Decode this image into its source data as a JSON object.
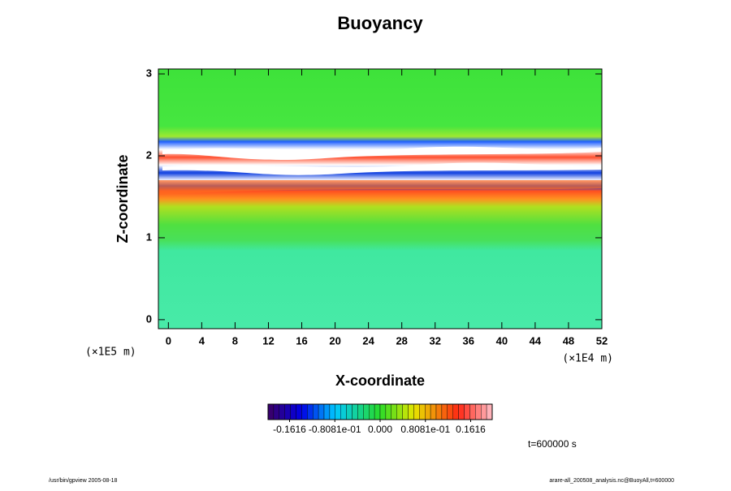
{
  "chart_data": {
    "type": "heatmap",
    "title": "Buoyancy",
    "xlabel": "X-coordinate",
    "ylabel": "Z-coordinate",
    "x_unit": "(×1E4 m)",
    "y_unit": "(×1E5 m)",
    "xlim": [
      -1.2,
      52
    ],
    "ylim": [
      -0.11,
      3.06
    ],
    "xticks": [
      0,
      4,
      8,
      12,
      16,
      20,
      24,
      28,
      32,
      36,
      40,
      44,
      48,
      52
    ],
    "yticks": [
      0,
      1,
      2,
      3
    ],
    "clim": [
      -0.2,
      0.2
    ],
    "cticks": [
      -0.1616,
      {
        "value": -0.08081,
        "label": "-0.8081e-01"
      },
      {
        "value": 0,
        "label": "0.000"
      },
      {
        "value": 0.08081,
        "label": "0.8081e-01"
      },
      0.1616
    ],
    "time_label": "t=600000 s",
    "footer_left": "/usr/bin/gpview 2005-08-18",
    "footer_right": "arare-all_200508_analysis.nc@BuoyAll,t=600000"
  }
}
